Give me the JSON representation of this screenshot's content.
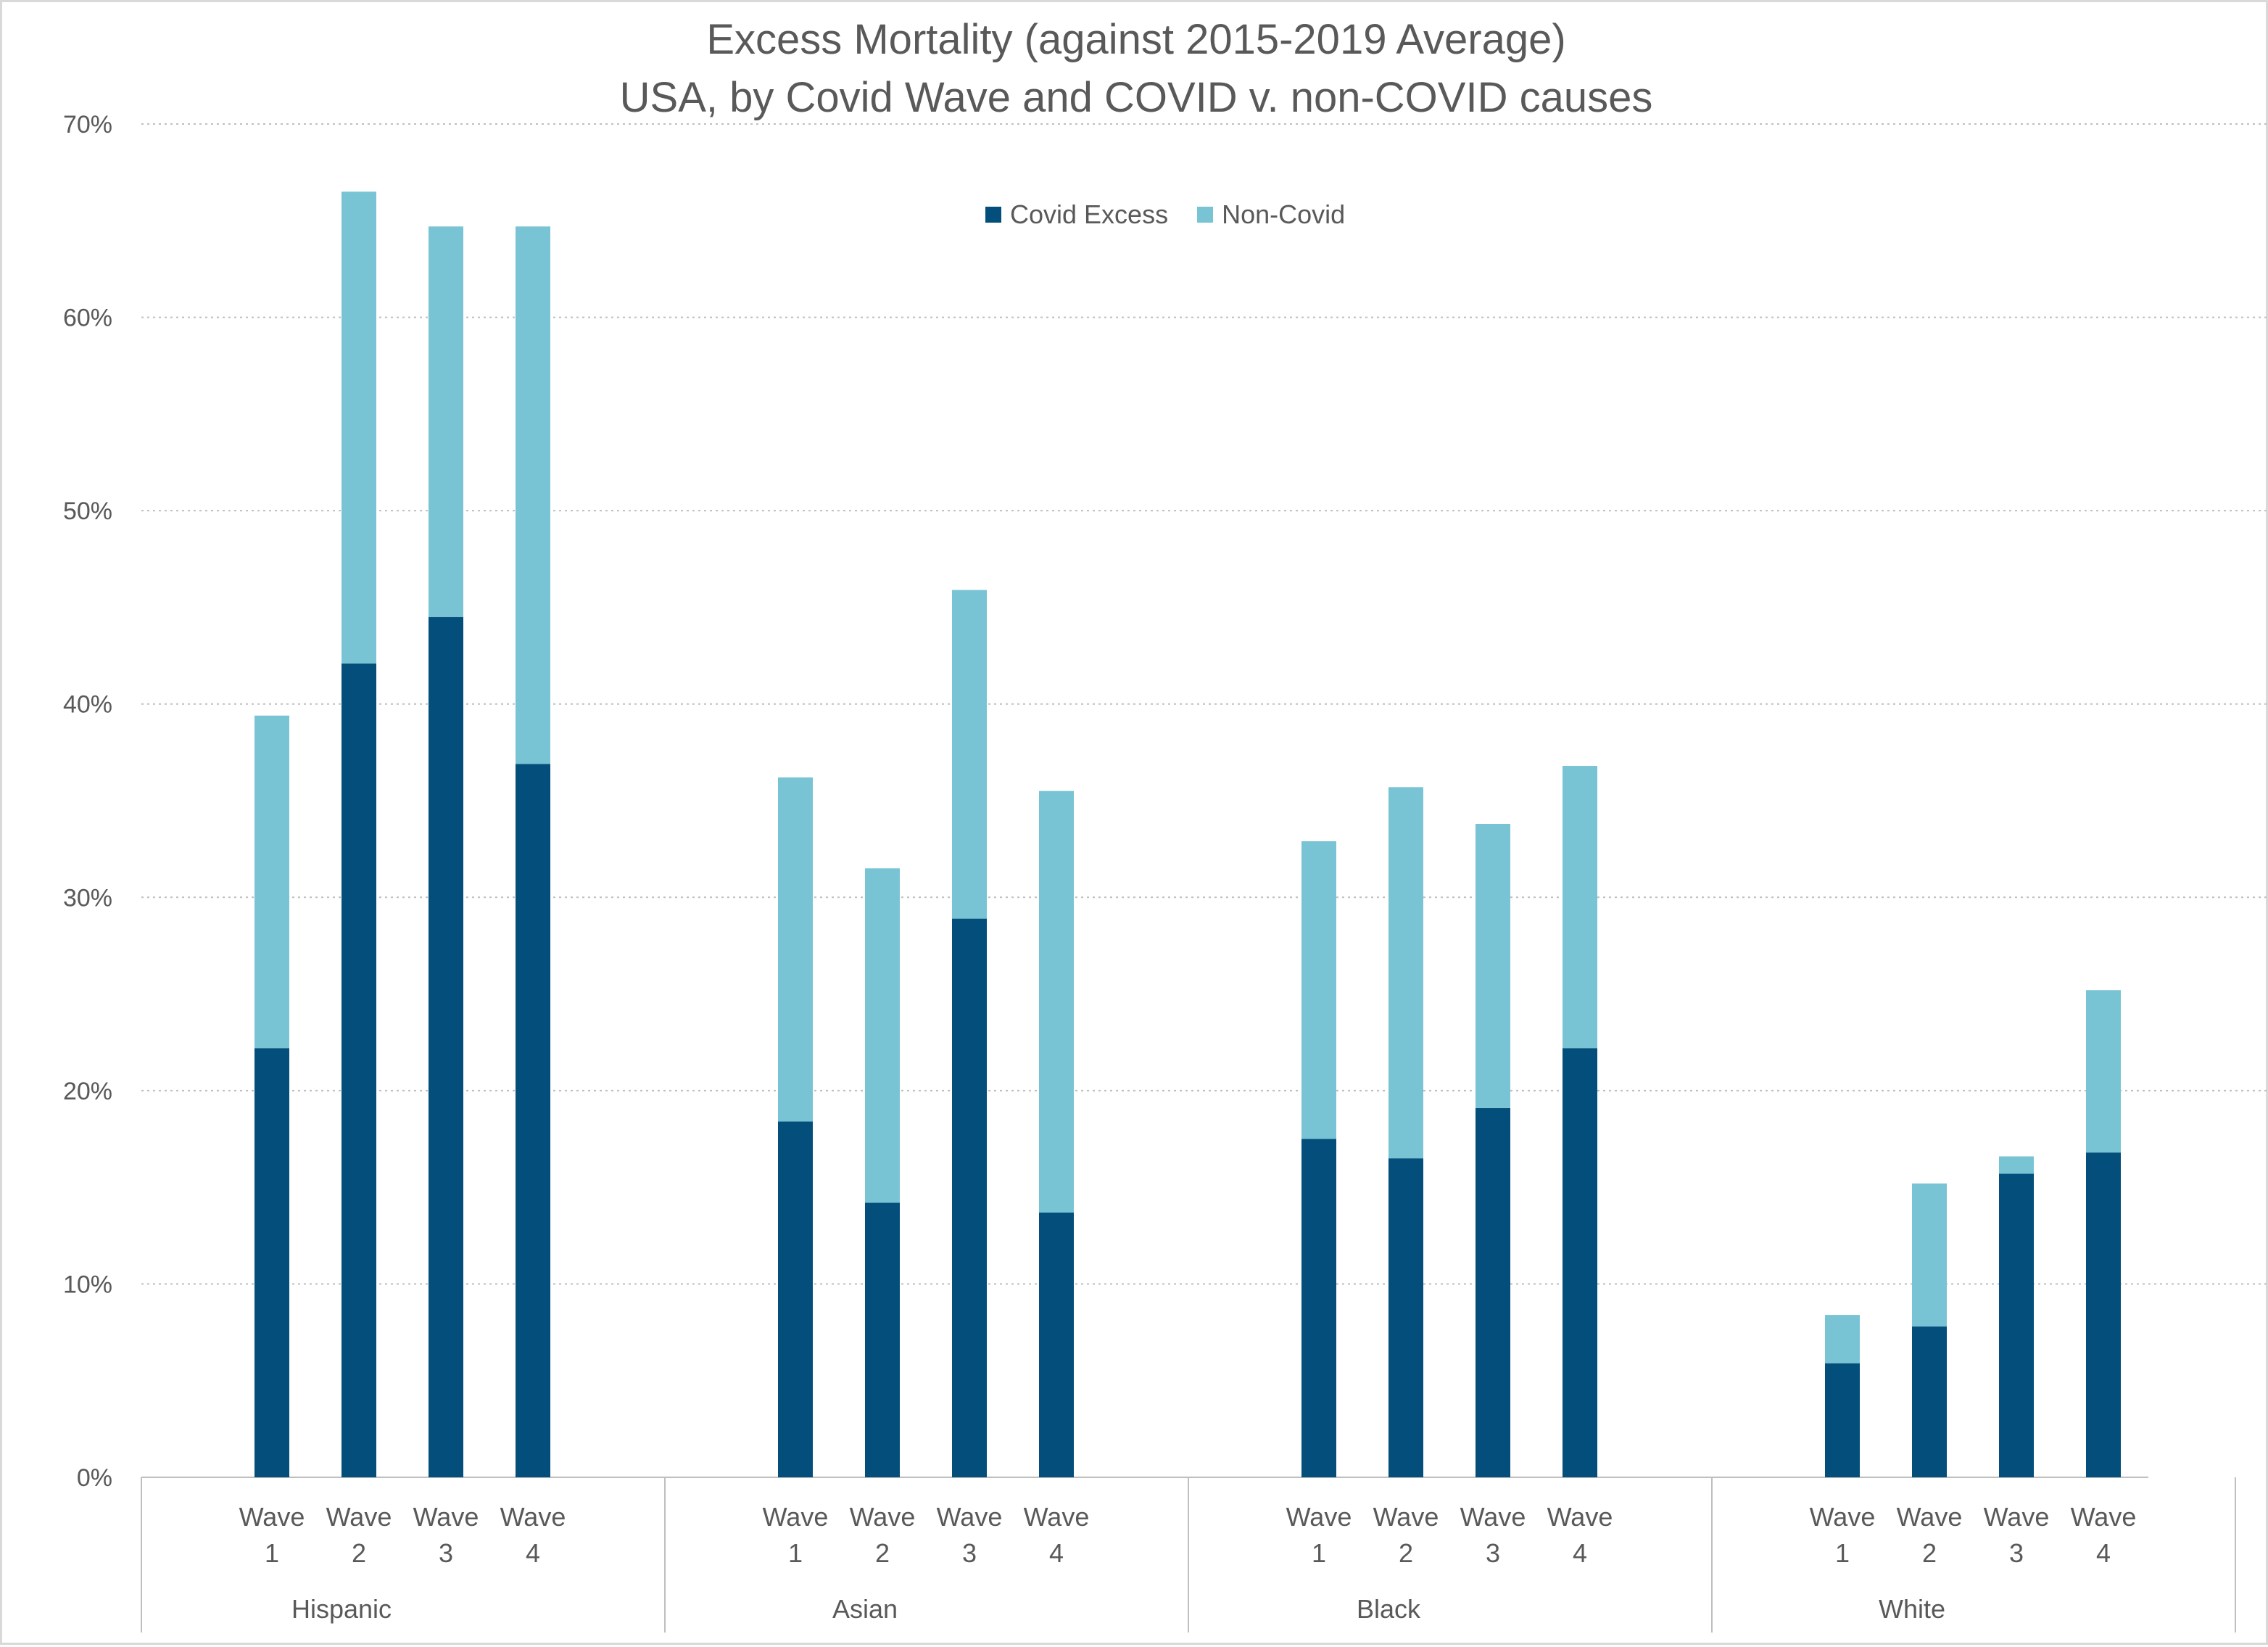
{
  "chart_data": {
    "type": "bar",
    "stacked": true,
    "title": "Excess Mortality (against 2015-2019 Average)",
    "subtitle": "USA, by Covid Wave and COVID v. non-COVID causes",
    "xlabel": "",
    "ylabel": "",
    "ylim": [
      0,
      0.7
    ],
    "y_ticks": [
      "0%",
      "10%",
      "20%",
      "30%",
      "40%",
      "50%",
      "60%",
      "70%"
    ],
    "grid": true,
    "legend_position": "top-center",
    "groups": [
      "Hispanic",
      "Asian",
      "Black",
      "White"
    ],
    "categories": [
      "Wave 1",
      "Wave 2",
      "Wave 3",
      "Wave 4"
    ],
    "category_lines": [
      [
        "Wave",
        "1"
      ],
      [
        "Wave",
        "2"
      ],
      [
        "Wave",
        "3"
      ],
      [
        "Wave",
        "4"
      ]
    ],
    "series": [
      {
        "name": "Covid Excess",
        "color": "#034e7b",
        "values": [
          [
            0.222,
            0.421,
            0.445,
            0.369
          ],
          [
            0.184,
            0.142,
            0.289,
            0.137
          ],
          [
            0.175,
            0.165,
            0.191,
            0.222
          ],
          [
            0.059,
            0.078,
            0.157,
            0.168
          ]
        ]
      },
      {
        "name": "Non-Covid",
        "color": "#79c4d4",
        "values": [
          [
            0.172,
            0.244,
            0.202,
            0.278
          ],
          [
            0.178,
            0.173,
            0.17,
            0.218
          ],
          [
            0.154,
            0.192,
            0.147,
            0.146
          ],
          [
            0.025,
            0.074,
            0.009,
            0.084
          ]
        ]
      }
    ]
  }
}
